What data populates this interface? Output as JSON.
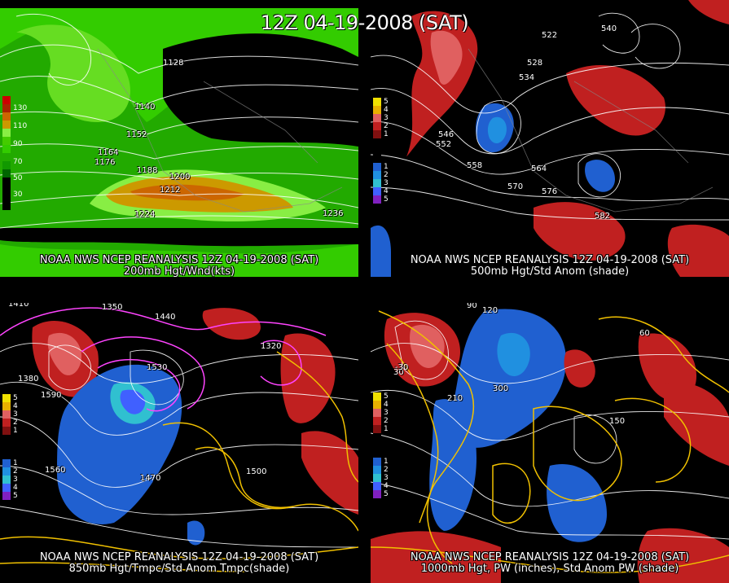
{
  "title": "12Z 04-19-2008 (SAT)",
  "panels": {
    "p1": {
      "caption1": "NOAA NWS NCEP REANALYSIS 12Z 04-19-2008 (SAT)",
      "caption2": "200mb Hgt/Wnd(kts)",
      "colorbar": [
        "130",
        "110",
        "90",
        "70",
        "50",
        "30"
      ],
      "contour_labels": [
        "1128",
        "1140",
        "1152",
        "1164",
        "1176",
        "1188",
        "1200",
        "1212",
        "1224",
        "1236"
      ]
    },
    "p2": {
      "caption1": "NOAA NWS NCEP REANALYSIS 12Z 04-19-2008 (SAT)",
      "caption2": "500mb Hgt/Std Anom (shade)",
      "colorbar": [
        "5",
        "4",
        "3",
        "2",
        "1",
        "1",
        "2",
        "3",
        "4",
        "5"
      ],
      "contour_labels": [
        "522",
        "528",
        "534",
        "540",
        "546",
        "552",
        "558",
        "564",
        "570",
        "576",
        "582"
      ]
    },
    "p3": {
      "caption1": "NOAA NWS NCEP REANALYSIS 12Z 04-19-2008 (SAT)",
      "caption2": "850mb Hgt/Tmpc/Std Anom Tmpc(shade)",
      "colorbar": [
        "5",
        "4",
        "3",
        "2",
        "1",
        "1",
        "2",
        "3",
        "4",
        "5"
      ],
      "contour_labels": [
        "1410",
        "1380",
        "1350",
        "1440",
        "1530",
        "1590",
        "1560",
        "1470",
        "1500",
        "1320"
      ]
    },
    "p4": {
      "caption1": "NOAA NWS NCEP REANALYSIS 12Z 04-19-2008 (SAT)",
      "caption2": "1000mb Hgt, PW (inches), Std Anom PW (shade)",
      "colorbar": [
        "5",
        "4",
        "3",
        "2",
        "1",
        "1",
        "2",
        "3",
        "4",
        "5"
      ],
      "contour_labels": [
        "90",
        "120",
        "30",
        "210",
        "300",
        "150",
        "60",
        "-30"
      ]
    }
  },
  "colors": {
    "anom_pos": [
      "#f0e000",
      "#e8b000",
      "#e06060",
      "#c02020",
      "#801010"
    ],
    "anom_neg": [
      "#2060d0",
      "#2090e0",
      "#30c0d0",
      "#4060ff",
      "#8020c0"
    ],
    "wind": [
      "#cc0000",
      "#cc6600",
      "#cc9900",
      "#22aa00",
      "#33cc00",
      "#88ee44"
    ],
    "pw_contour": "#f0c000",
    "temp_contour": "#ff44ff"
  }
}
